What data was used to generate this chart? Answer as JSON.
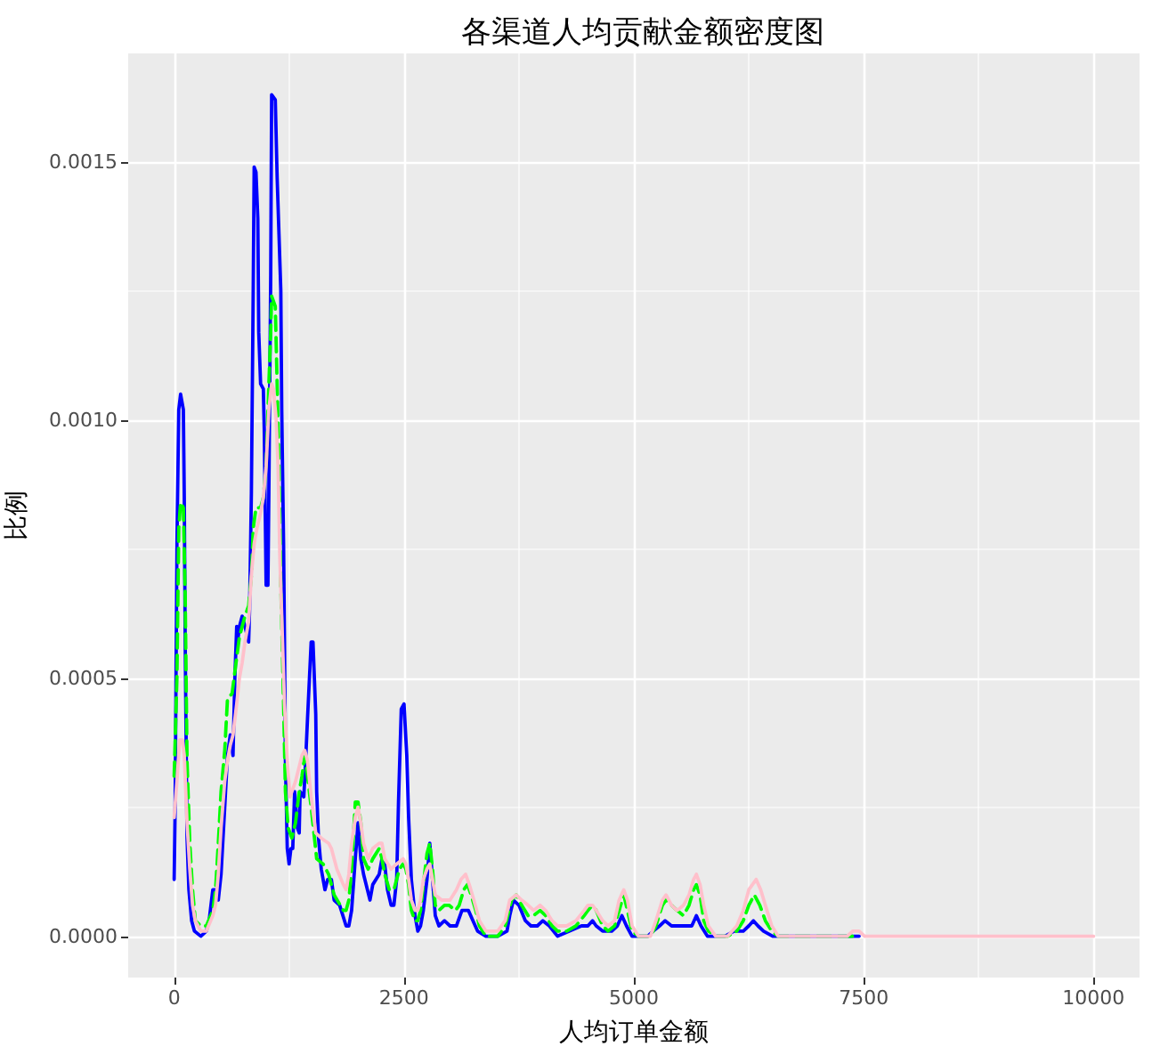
{
  "chart_data": {
    "type": "line",
    "title": "各渠道人均贡献金额密度图",
    "xlabel": "人均订单金额",
    "ylabel": "比例",
    "xlim": [
      -500,
      10500
    ],
    "ylim": [
      -8e-05,
      0.00171
    ],
    "xticks": [
      0,
      {
        "value": 1250,
        "label": null
      },
      2500,
      {
        "value": 3750,
        "label": null
      },
      5000,
      {
        "value": 6250,
        "label": null
      },
      7500,
      {
        "value": 8750,
        "label": null
      },
      10000
    ],
    "yticks": [
      {
        "value": 0,
        "label": "0.0000"
      },
      {
        "value": 0.00025,
        "label": null
      },
      0.0005,
      {
        "value": 0.00075,
        "label": null
      },
      {
        "value": 0.001,
        "label": "0.0010"
      },
      {
        "value": 0.00125,
        "label": null
      },
      0.0015
    ],
    "grid": true,
    "marker": "none",
    "line_style": "solid",
    "series": [
      {
        "color": "#0000ff",
        "x": [
          0,
          10,
          30,
          50,
          70,
          100,
          110,
          120,
          140,
          160,
          190,
          220,
          290,
          350,
          380,
          420,
          450,
          480,
          510,
          550,
          580,
          610,
          640,
          660,
          680,
          690,
          710,
          740,
          770,
          810,
          820,
          840,
          860,
          870,
          890,
          910,
          920,
          940,
          970,
          980,
          1000,
          1020,
          1030,
          1050,
          1060,
          1100,
          1120,
          1140,
          1160,
          1170,
          1190,
          1200,
          1210,
          1230,
          1250,
          1270,
          1290,
          1310,
          1340,
          1360,
          1370,
          1410,
          1430,
          1450,
          1490,
          1510,
          1540,
          1550,
          1570,
          1600,
          1640,
          1670,
          1710,
          1740,
          1800,
          1870,
          1900,
          1930,
          1970,
          2000,
          2030,
          2060,
          2130,
          2160,
          2230,
          2260,
          2290,
          2320,
          2360,
          2390,
          2420,
          2440,
          2470,
          2500,
          2530,
          2550,
          2580,
          2620,
          2650,
          2680,
          2710,
          2750,
          2780,
          2810,
          2840,
          2880,
          2940,
          3000,
          3070,
          3130,
          3200,
          3250,
          3300,
          3390,
          3520,
          3620,
          3650,
          3690,
          3750,
          3820,
          3880,
          3950,
          4010,
          4080,
          4170,
          4300,
          4430,
          4500,
          4550,
          4590,
          4660,
          4760,
          4820,
          4870,
          4920,
          4980,
          5150,
          5210,
          5280,
          5340,
          5410,
          5570,
          5630,
          5680,
          5730,
          5800,
          5990,
          6090,
          6190,
          6250,
          6300,
          6350,
          6410,
          6510,
          7450
        ],
        "values": [
          0.00011,
          0.00024,
          0.00076,
          0.00102,
          0.00105,
          0.00102,
          0.00085,
          0.00057,
          0.00019,
          9e-05,
          3e-05,
          1e-05,
          0,
          1e-05,
          3e-05,
          9e-05,
          9e-05,
          7e-05,
          0.00012,
          0.00025,
          0.00035,
          0.00039,
          0.00035,
          0.0005,
          0.0006,
          0.00057,
          0.0006,
          0.00062,
          0.0006,
          0.00057,
          0.00063,
          0.00086,
          0.00126,
          0.00149,
          0.00148,
          0.00139,
          0.00117,
          0.00107,
          0.00106,
          0.00098,
          0.00068,
          0.00068,
          0.00086,
          0.00128,
          0.00163,
          0.00162,
          0.00147,
          0.00136,
          0.00125,
          0.00102,
          0.00076,
          0.00057,
          0.00034,
          0.00017,
          0.00014,
          0.00017,
          0.00017,
          0.00028,
          0.00021,
          0.0002,
          0.00028,
          0.00027,
          0.00034,
          0.00042,
          0.00057,
          0.00057,
          0.00043,
          0.00028,
          0.00019,
          0.00013,
          9e-05,
          0.00011,
          0.00011,
          7e-05,
          6e-05,
          2e-05,
          2e-05,
          5e-05,
          0.00015,
          0.00022,
          0.00015,
          0.00012,
          7e-05,
          0.0001,
          0.00012,
          0.00015,
          0.00014,
          9e-05,
          6e-05,
          6e-05,
          0.00011,
          0.00026,
          0.00044,
          0.00045,
          0.00035,
          0.00023,
          0.00011,
          4e-05,
          1e-05,
          2e-05,
          5e-05,
          0.00011,
          0.00018,
          0.00011,
          4e-05,
          2e-05,
          3e-05,
          2e-05,
          2e-05,
          5e-05,
          5e-05,
          3e-05,
          1e-05,
          0,
          0,
          1e-05,
          4e-05,
          7e-05,
          6e-05,
          3e-05,
          2e-05,
          2e-05,
          3e-05,
          2e-05,
          0,
          1e-05,
          2e-05,
          2e-05,
          3e-05,
          2e-05,
          1e-05,
          1e-05,
          2e-05,
          4e-05,
          2e-05,
          0,
          0,
          1e-05,
          2e-05,
          3e-05,
          2e-05,
          2e-05,
          2e-05,
          4e-05,
          2e-05,
          0,
          0,
          1e-05,
          1e-05,
          2e-05,
          3e-05,
          2e-05,
          1e-05,
          0,
          0
        ]
      },
      {
        "color": "#00ff00",
        "line_style": "dashed",
        "x": [
          0,
          30,
          50,
          70,
          100,
          120,
          140,
          170,
          200,
          230,
          290,
          350,
          420,
          450,
          480,
          510,
          550,
          580,
          630,
          680,
          710,
          770,
          810,
          840,
          860,
          890,
          940,
          970,
          1000,
          1030,
          1050,
          1060,
          1100,
          1120,
          1140,
          1160,
          1190,
          1210,
          1240,
          1280,
          1320,
          1360,
          1390,
          1420,
          1450,
          1490,
          1520,
          1550,
          1620,
          1680,
          1740,
          1840,
          1870,
          1900,
          1930,
          1970,
          2000,
          2030,
          2060,
          2110,
          2160,
          2230,
          2260,
          2290,
          2340,
          2390,
          2420,
          2450,
          2490,
          2520,
          2550,
          2580,
          2620,
          2650,
          2680,
          2710,
          2750,
          2780,
          2810,
          2840,
          2880,
          2940,
          2990,
          3060,
          3100,
          3150,
          3190,
          3230,
          3280,
          3320,
          3390,
          3520,
          3600,
          3670,
          3720,
          3780,
          3850,
          3910,
          3980,
          4040,
          4110,
          4170,
          4270,
          4370,
          4460,
          4500,
          4550,
          4590,
          4660,
          4720,
          4790,
          4840,
          4890,
          4930,
          4980,
          5050,
          5180,
          5240,
          5310,
          5350,
          5410,
          5470,
          5540,
          5600,
          5650,
          5680,
          5720,
          5760,
          5810,
          5890,
          6020,
          6120,
          6190,
          6250,
          6310,
          6370,
          6430,
          6500,
          6570,
          7450
        ],
        "values": [
          0.00031,
          0.0005,
          0.00079,
          0.00084,
          0.00083,
          0.00066,
          0.00034,
          0.00018,
          9e-05,
          3e-05,
          2e-05,
          2e-05,
          5e-05,
          9e-05,
          0.00018,
          0.00028,
          0.00036,
          0.00046,
          0.00047,
          0.00054,
          0.00058,
          0.00062,
          0.00064,
          0.0007,
          0.00079,
          0.00083,
          0.00083,
          0.00085,
          0.00091,
          0.00107,
          0.00117,
          0.00124,
          0.00122,
          0.00107,
          0.00091,
          0.00068,
          0.00045,
          0.00028,
          0.00021,
          0.00019,
          0.00022,
          0.00028,
          0.00031,
          0.00035,
          0.00031,
          0.00025,
          0.0002,
          0.00015,
          0.00014,
          0.00012,
          8e-05,
          5e-05,
          5e-05,
          7e-05,
          0.00013,
          0.00026,
          0.00026,
          0.00022,
          0.00015,
          0.00013,
          0.00015,
          0.00017,
          0.00015,
          0.00012,
          9e-05,
          9e-05,
          0.00011,
          0.00013,
          0.00014,
          0.00013,
          0.0001,
          5e-05,
          3e-05,
          3e-05,
          5e-05,
          0.0001,
          0.00016,
          0.00018,
          0.00013,
          6e-05,
          5e-05,
          6e-05,
          6e-05,
          5e-05,
          6e-05,
          9e-05,
          0.0001,
          8e-05,
          5e-05,
          2e-05,
          0,
          0,
          2e-05,
          7e-05,
          8e-05,
          6e-05,
          4e-05,
          4e-05,
          5e-05,
          4e-05,
          2e-05,
          1e-05,
          1e-05,
          2e-05,
          4e-05,
          5e-05,
          6e-05,
          5e-05,
          2e-05,
          1e-05,
          2e-05,
          5e-05,
          8e-05,
          5e-05,
          1e-05,
          0,
          0,
          2e-05,
          6e-05,
          7e-05,
          6e-05,
          5e-05,
          4e-05,
          6e-05,
          9e-05,
          0.0001,
          8e-05,
          3e-05,
          1e-05,
          0,
          0,
          1e-05,
          3e-05,
          6e-05,
          8e-05,
          6e-05,
          3e-05,
          1e-05,
          0,
          0
        ]
      },
      {
        "color": "#ffc0cb",
        "x": [
          0,
          30,
          60,
          90,
          110,
          140,
          170,
          200,
          230,
          290,
          350,
          420,
          450,
          480,
          510,
          550,
          580,
          610,
          640,
          680,
          710,
          740,
          770,
          810,
          840,
          870,
          900,
          940,
          970,
          1000,
          1030,
          1060,
          1080,
          1110,
          1130,
          1150,
          1170,
          1200,
          1230,
          1260,
          1320,
          1390,
          1420,
          1450,
          1490,
          1540,
          1600,
          1680,
          1710,
          1770,
          1840,
          1870,
          1900,
          1930,
          1970,
          2000,
          2030,
          2060,
          2110,
          2160,
          2230,
          2260,
          2290,
          2360,
          2420,
          2490,
          2520,
          2550,
          2580,
          2620,
          2650,
          2680,
          2710,
          2750,
          2780,
          2810,
          2840,
          2910,
          3000,
          3070,
          3120,
          3170,
          3210,
          3260,
          3320,
          3390,
          3520,
          3600,
          3650,
          3720,
          3780,
          3850,
          3910,
          3980,
          4040,
          4110,
          4170,
          4270,
          4370,
          4460,
          4500,
          4550,
          4590,
          4660,
          4720,
          4790,
          4840,
          4890,
          4930,
          4980,
          5050,
          5180,
          5240,
          5310,
          5350,
          5410,
          5470,
          5540,
          5600,
          5650,
          5680,
          5720,
          5760,
          5810,
          5890,
          6020,
          6120,
          6190,
          6250,
          6330,
          6380,
          6430,
          6500,
          6570,
          6640,
          7320,
          7380,
          7450,
          7510,
          10000
        ],
        "values": [
          0.00023,
          0.0003,
          0.00038,
          0.00038,
          0.00035,
          0.00022,
          0.00013,
          6e-05,
          3e-05,
          1e-05,
          1e-05,
          4e-05,
          6e-05,
          0.00012,
          0.00021,
          0.0003,
          0.00034,
          0.00037,
          0.00039,
          0.00045,
          0.0005,
          0.00053,
          0.00057,
          0.00061,
          0.0007,
          0.00076,
          0.00079,
          0.00082,
          0.00085,
          0.00091,
          0.00102,
          0.00107,
          0.00106,
          0.001,
          0.00091,
          0.00073,
          0.00062,
          0.00045,
          0.00034,
          0.00027,
          0.0003,
          0.00035,
          0.00036,
          0.00034,
          0.00027,
          0.0002,
          0.00019,
          0.00018,
          0.00017,
          0.00013,
          0.0001,
          9e-05,
          0.00012,
          0.00018,
          0.00023,
          0.00025,
          0.00022,
          0.00018,
          0.00015,
          0.00017,
          0.00018,
          0.00018,
          0.00015,
          0.00013,
          0.00014,
          0.00015,
          0.00014,
          0.00011,
          7e-05,
          5e-05,
          5e-05,
          7e-05,
          0.00011,
          0.00013,
          0.00014,
          0.00011,
          8e-05,
          7e-05,
          7e-05,
          9e-05,
          0.00011,
          0.00012,
          0.0001,
          7e-05,
          3e-05,
          1e-05,
          1e-05,
          3e-05,
          7e-05,
          8e-05,
          7e-05,
          6e-05,
          5e-05,
          6e-05,
          5e-05,
          3e-05,
          2e-05,
          2e-05,
          3e-05,
          5e-05,
          6e-05,
          6e-05,
          5e-05,
          3e-05,
          2e-05,
          3e-05,
          7e-05,
          9e-05,
          7e-05,
          2e-05,
          0,
          0,
          3e-05,
          7e-05,
          8e-05,
          6e-05,
          5e-05,
          6e-05,
          8e-05,
          0.00011,
          0.00012,
          0.0001,
          6e-05,
          2e-05,
          0,
          0,
          2e-05,
          5e-05,
          9e-05,
          0.00011,
          9e-05,
          6e-05,
          2e-05,
          0,
          0,
          0,
          1e-05,
          1e-05,
          0,
          0
        ]
      }
    ]
  }
}
